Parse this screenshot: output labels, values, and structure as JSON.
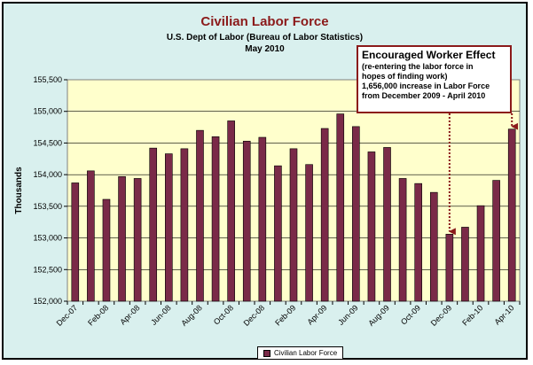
{
  "chart_data": {
    "type": "bar",
    "title": "Civilian Labor Force",
    "subtitle_lines": [
      "U.S. Dept of Labor (Bureau of Labor Statistics)",
      "May 2010"
    ],
    "ylabel": "Thousands",
    "xlabel": "",
    "ylim": [
      152000,
      155500
    ],
    "yticks": [
      152000,
      152500,
      153000,
      153500,
      154000,
      154500,
      155000,
      155500
    ],
    "ytick_labels": [
      "152,000",
      "152,500",
      "153,000",
      "153,500",
      "154,000",
      "154,500",
      "155,000",
      "155,500"
    ],
    "categories": [
      "Dec-07",
      "Jan-08",
      "Feb-08",
      "Mar-08",
      "Apr-08",
      "May-08",
      "Jun-08",
      "Jul-08",
      "Aug-08",
      "Sep-08",
      "Oct-08",
      "Nov-08",
      "Dec-08",
      "Jan-09",
      "Feb-09",
      "Mar-09",
      "Apr-09",
      "May-09",
      "Jun-09",
      "Jul-09",
      "Aug-09",
      "Sep-09",
      "Oct-09",
      "Nov-09",
      "Dec-09",
      "Jan-10",
      "Feb-10",
      "Mar-10",
      "Apr-10"
    ],
    "shown_tick_labels": [
      "Dec-07",
      "Feb-08",
      "Apr-08",
      "Jun-08",
      "Aug-08",
      "Oct-08",
      "Dec-08",
      "Feb-09",
      "Apr-09",
      "Jun-09",
      "Aug-09",
      "Oct-09",
      "Dec-09",
      "Feb-10",
      "Apr-10"
    ],
    "series": [
      {
        "name": "Civilian Labor Force",
        "color": "#7a2a48",
        "values": [
          153870,
          154060,
          153610,
          153970,
          153940,
          154420,
          154330,
          154410,
          154700,
          154600,
          154850,
          154530,
          154590,
          154140,
          154410,
          154160,
          154730,
          154960,
          154760,
          154360,
          154430,
          153940,
          153860,
          153720,
          153060,
          153170,
          153510,
          153910,
          154720
        ]
      }
    ],
    "legend_position": "bottom",
    "grid": true,
    "annotation": {
      "heading": "Encouraged Worker Effect",
      "lines": [
        "(re-entering the labor force in",
        "hopes of finding work)",
        "1,656,000 increase in Labor Force",
        "from December 2009 - April 2010"
      ],
      "arrows_to": [
        "Dec-09",
        "Apr-10"
      ]
    }
  },
  "colors": {
    "plot_bg": "#ffffcc",
    "frame_bg": "#d9f0ee",
    "title": "#8b1a1a",
    "bar": "#7a2a48",
    "arrow": "#8b1a1a"
  }
}
